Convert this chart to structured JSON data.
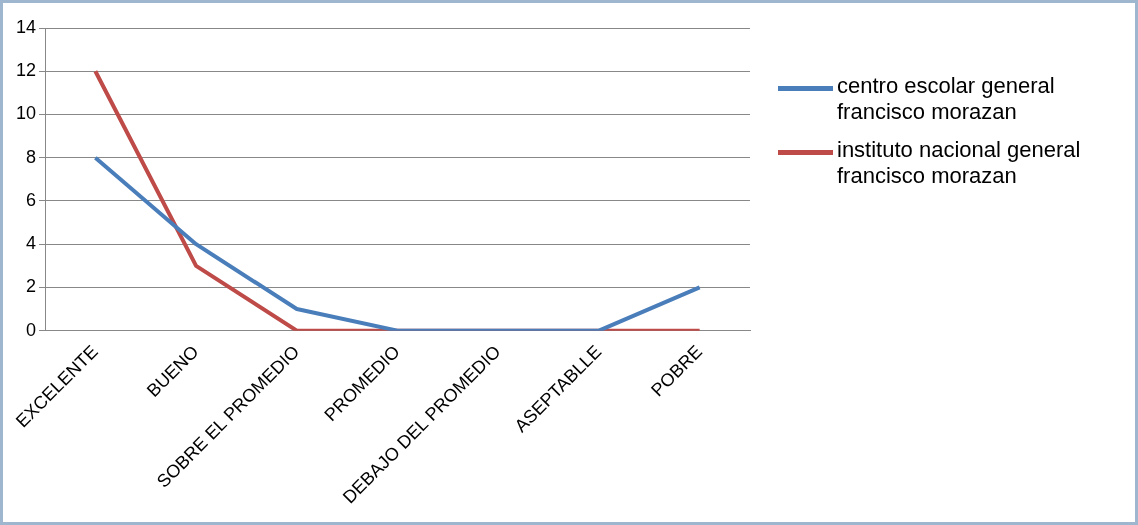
{
  "chart_data": {
    "type": "line",
    "categories": [
      "EXCELENTE",
      "BUENO",
      "SOBRE EL PROMEDIO",
      "PROMEDIO",
      "DEBAJO DEL PROMEDIO",
      "ASEPTABLLE",
      "POBRE"
    ],
    "series": [
      {
        "name": "centro escolar general francisco morazan",
        "color": "#4a7ebb",
        "values": [
          8,
          4,
          1,
          0,
          0,
          0,
          2
        ]
      },
      {
        "name": "instituto nacional general francisco morazan",
        "color": "#be4b48",
        "values": [
          12,
          3,
          0,
          0,
          0,
          0,
          0
        ]
      }
    ],
    "ylim": [
      0,
      14
    ],
    "yticks": [
      0,
      2,
      4,
      6,
      8,
      10,
      12,
      14
    ],
    "grid": "y",
    "legend": "right",
    "marker": "none",
    "line_style": "solid"
  }
}
